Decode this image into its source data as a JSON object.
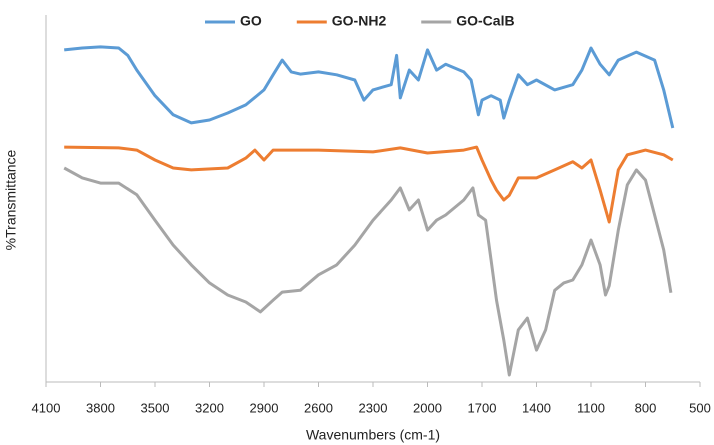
{
  "chart_data": {
    "type": "line",
    "xlabel": "Wavenumbers (cm-1)",
    "ylabel": "%Transmittance",
    "xlim": [
      4100,
      500
    ],
    "xticks": [
      4100,
      3800,
      3500,
      3200,
      2900,
      2600,
      2300,
      2000,
      1700,
      1400,
      1100,
      800,
      500
    ],
    "ylim": [
      0,
      100
    ],
    "legend": "top",
    "series": [
      {
        "name": "GO",
        "color": "#5b9bd5",
        "x": [
          4000,
          3900,
          3800,
          3700,
          3650,
          3600,
          3500,
          3400,
          3300,
          3200,
          3100,
          3000,
          2900,
          2850,
          2800,
          2750,
          2700,
          2600,
          2500,
          2400,
          2350,
          2300,
          2200,
          2170,
          2150,
          2100,
          2050,
          2000,
          1950,
          1900,
          1800,
          1760,
          1720,
          1700,
          1650,
          1600,
          1580,
          1550,
          1500,
          1450,
          1400,
          1300,
          1200,
          1150,
          1100,
          1050,
          1000,
          950,
          850,
          750,
          700,
          650
        ],
        "values": [
          90.5,
          91,
          91.3,
          91,
          89,
          85,
          78,
          72.8,
          70.6,
          71.4,
          73.3,
          75.5,
          79.6,
          83.7,
          87.7,
          84.5,
          83.9,
          84.5,
          83.7,
          82.3,
          76.8,
          79.6,
          81,
          89,
          77.4,
          85,
          82.3,
          90.5,
          85,
          86.6,
          84.5,
          82.3,
          72.8,
          76.8,
          78,
          76.8,
          71.9,
          76.8,
          83.7,
          81,
          82.3,
          79.6,
          81,
          85,
          91,
          86.6,
          83.7,
          87.7,
          89.9,
          87.7,
          79.6,
          69.2
        ]
      },
      {
        "name": "GO-NH2",
        "color": "#ed7d31",
        "x": [
          4000,
          3700,
          3600,
          3500,
          3400,
          3300,
          3100,
          3000,
          2950,
          2900,
          2850,
          2600,
          2300,
          2150,
          2000,
          1800,
          1730,
          1700,
          1650,
          1620,
          1580,
          1550,
          1500,
          1400,
          1300,
          1200,
          1150,
          1100,
          1050,
          1000,
          950,
          900,
          800,
          700,
          650
        ],
        "values": [
          64,
          63.8,
          63.2,
          60.5,
          58.3,
          57.8,
          58.3,
          61,
          63.2,
          60.5,
          63.2,
          63.2,
          62.7,
          63.8,
          62.4,
          63.2,
          64,
          60.5,
          55,
          52.3,
          49.6,
          50.9,
          55.6,
          55.6,
          57.8,
          60,
          58.3,
          60.5,
          52.3,
          43.6,
          57.8,
          61.9,
          63.2,
          61.9,
          60.5
        ]
      },
      {
        "name": "GO-CalB",
        "color": "#a5a5a5",
        "x": [
          4000,
          3900,
          3800,
          3700,
          3600,
          3500,
          3400,
          3300,
          3200,
          3100,
          3000,
          2920,
          2850,
          2800,
          2700,
          2600,
          2500,
          2400,
          2300,
          2200,
          2150,
          2100,
          2050,
          2000,
          1950,
          1900,
          1800,
          1750,
          1720,
          1680,
          1650,
          1620,
          1580,
          1550,
          1500,
          1450,
          1400,
          1350,
          1300,
          1250,
          1200,
          1150,
          1100,
          1050,
          1020,
          1000,
          950,
          900,
          850,
          800,
          750,
          700,
          660
        ],
        "values": [
          58.3,
          55.6,
          54.2,
          54.2,
          51,
          44.1,
          37.3,
          31.9,
          27,
          23.7,
          21.8,
          19.1,
          22.3,
          24.5,
          25,
          29.2,
          31.9,
          37.3,
          44.1,
          49.6,
          52.9,
          46.9,
          49.6,
          41.4,
          44.1,
          45.5,
          49.6,
          52.9,
          45.5,
          44.1,
          33.2,
          22.3,
          11.4,
          1.9,
          14.2,
          17.4,
          8.7,
          14.2,
          25,
          27,
          27.8,
          31.9,
          38.7,
          31.9,
          23.7,
          26.2,
          41.4,
          53.7,
          57.8,
          55,
          45.5,
          36,
          24.3
        ]
      }
    ]
  }
}
